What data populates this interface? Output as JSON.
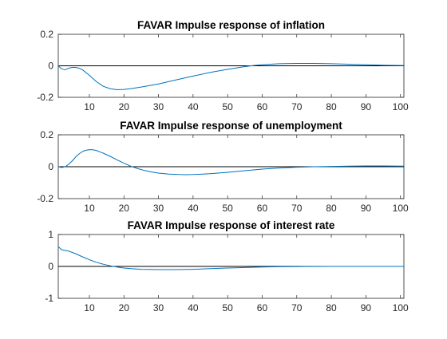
{
  "chart_data": [
    {
      "type": "line",
      "title": "FAVAR Impulse response of inflation",
      "xlim": [
        1,
        101
      ],
      "ylim": [
        -0.2,
        0.2
      ],
      "xticks": [
        10,
        20,
        30,
        40,
        50,
        60,
        70,
        80,
        90,
        100
      ],
      "yticks": [
        -0.2,
        0,
        0.2
      ],
      "ytick_labels": [
        "-0.2",
        "0",
        "0.2"
      ],
      "zero_line": 0,
      "grid": false,
      "series": [
        {
          "color": "#0072BD",
          "x": [
            1,
            2,
            3,
            4,
            5,
            6,
            7,
            8,
            10,
            12,
            14,
            16,
            18,
            20,
            22,
            25,
            30,
            35,
            40,
            45,
            50,
            55,
            58,
            60,
            65,
            70,
            75,
            80,
            85,
            90,
            95,
            101
          ],
          "y": [
            0.0,
            -0.02,
            -0.025,
            -0.015,
            -0.01,
            -0.01,
            -0.015,
            -0.025,
            -0.06,
            -0.1,
            -0.13,
            -0.145,
            -0.152,
            -0.15,
            -0.145,
            -0.135,
            -0.115,
            -0.09,
            -0.065,
            -0.042,
            -0.022,
            -0.005,
            0.003,
            0.007,
            0.013,
            0.015,
            0.015,
            0.013,
            0.01,
            0.007,
            0.004,
            0.002
          ]
        }
      ]
    },
    {
      "type": "line",
      "title": "FAVAR Impulse response of unemployment",
      "xlim": [
        1,
        101
      ],
      "ylim": [
        -0.2,
        0.2
      ],
      "xticks": [
        10,
        20,
        30,
        40,
        50,
        60,
        70,
        80,
        90,
        100
      ],
      "yticks": [
        -0.2,
        0,
        0.2
      ],
      "ytick_labels": [
        "-0.2",
        "0",
        "0.2"
      ],
      "zero_line": 0,
      "grid": false,
      "series": [
        {
          "color": "#0072BD",
          "x": [
            1,
            2,
            3,
            4,
            5,
            6,
            7,
            8,
            9,
            10,
            11,
            12,
            14,
            16,
            18,
            20,
            22,
            24,
            26,
            28,
            30,
            33,
            36,
            38,
            40,
            45,
            50,
            55,
            60,
            65,
            70,
            75,
            80,
            85,
            90,
            95,
            101
          ],
          "y": [
            0.0,
            -0.005,
            0.0,
            0.015,
            0.035,
            0.06,
            0.08,
            0.095,
            0.103,
            0.107,
            0.106,
            0.102,
            0.085,
            0.065,
            0.043,
            0.022,
            0.003,
            -0.012,
            -0.024,
            -0.033,
            -0.04,
            -0.046,
            -0.049,
            -0.05,
            -0.049,
            -0.044,
            -0.035,
            -0.025,
            -0.015,
            -0.008,
            -0.003,
            0.0,
            0.002,
            0.004,
            0.005,
            0.005,
            0.004
          ]
        }
      ]
    },
    {
      "type": "line",
      "title": "FAVAR Impulse response of interest rate",
      "xlim": [
        1,
        101
      ],
      "ylim": [
        -1,
        1
      ],
      "xticks": [
        10,
        20,
        30,
        40,
        50,
        60,
        70,
        80,
        90,
        100
      ],
      "yticks": [
        -1,
        0,
        1
      ],
      "ytick_labels": [
        "-1",
        "0",
        "1"
      ],
      "zero_line": 0,
      "grid": false,
      "series": [
        {
          "color": "#0072BD",
          "x": [
            1,
            2,
            3,
            4,
            6,
            8,
            10,
            12,
            14,
            16,
            18,
            20,
            22,
            25,
            30,
            35,
            40,
            45,
            50,
            55,
            60,
            65,
            70,
            80,
            90,
            101
          ],
          "y": [
            0.62,
            0.52,
            0.5,
            0.48,
            0.4,
            0.3,
            0.21,
            0.13,
            0.07,
            0.02,
            -0.02,
            -0.05,
            -0.07,
            -0.09,
            -0.1,
            -0.1,
            -0.09,
            -0.07,
            -0.05,
            -0.035,
            -0.02,
            -0.01,
            -0.005,
            0.0,
            0.0,
            0.0
          ]
        }
      ]
    }
  ]
}
